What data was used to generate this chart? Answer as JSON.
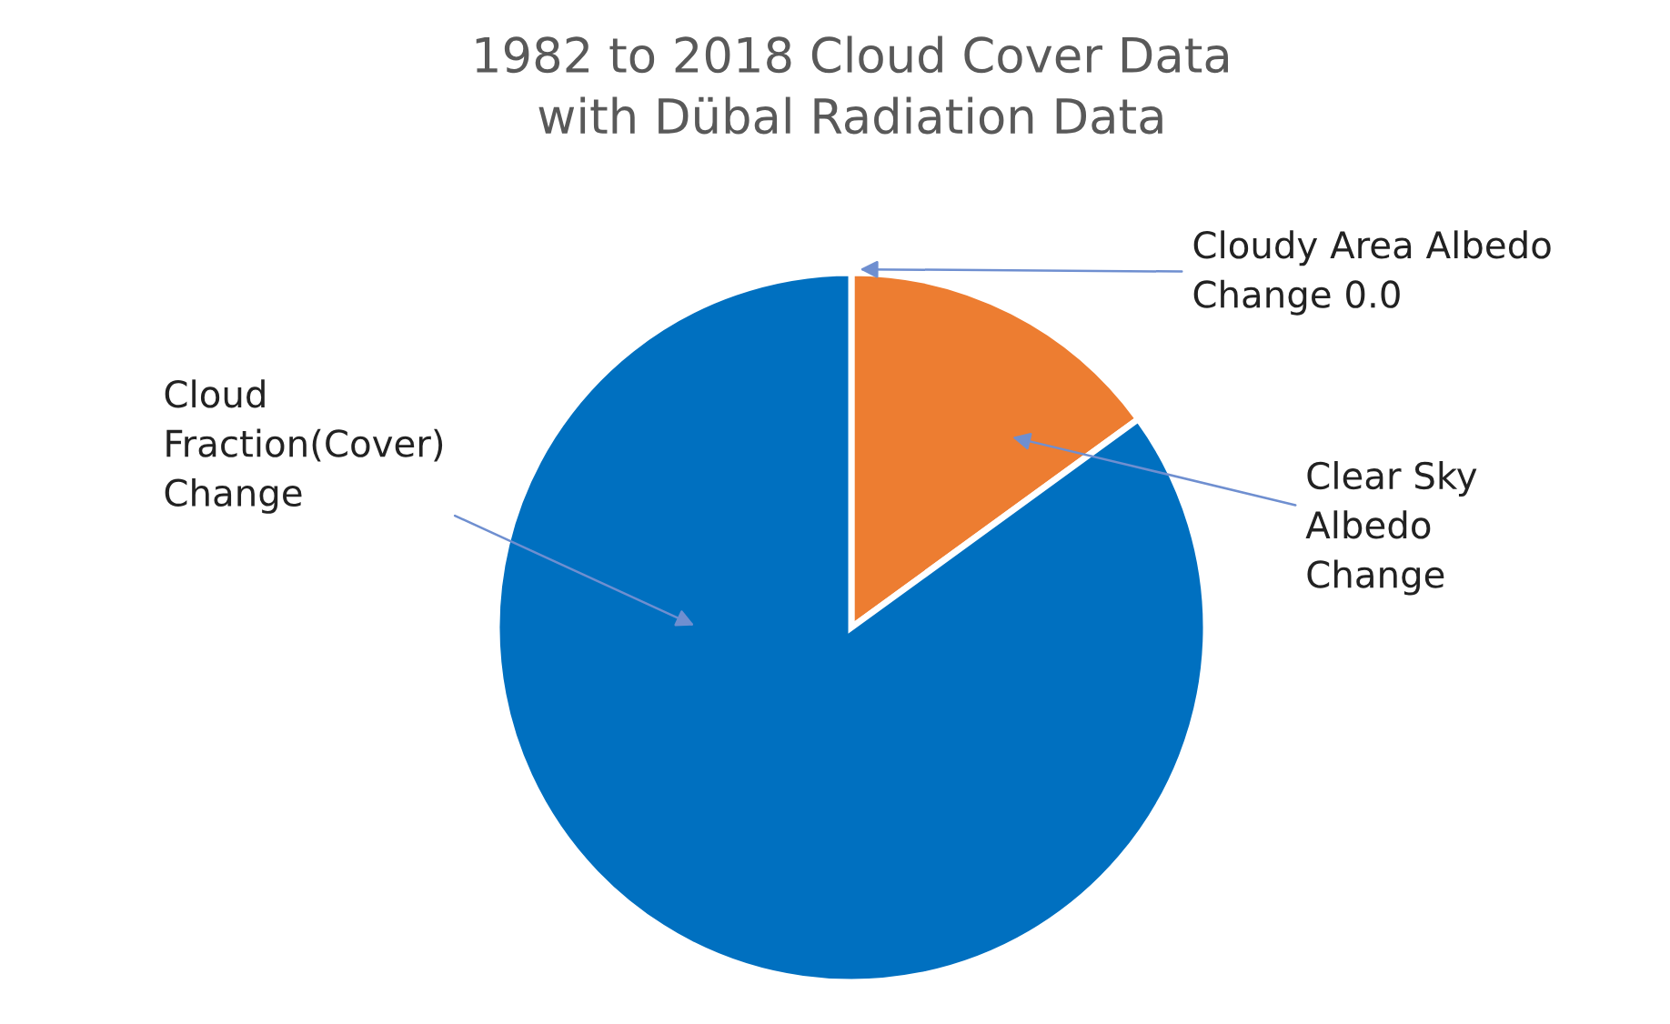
{
  "chart_data": {
    "type": "pie",
    "title": "1982 to 2018 Cloud Cover Data\nwith Dübal Radiation Data",
    "categories": [
      "Cloudy Area Albedo Change",
      "Clear Sky Albedo Change",
      "Cloud Fraction(Cover) Change"
    ],
    "values": [
      0,
      15,
      85
    ],
    "value_labels": [
      "0.0",
      null,
      null
    ],
    "colors": [
      "#a5a5a5",
      "#ed7d31",
      "#0070c0"
    ],
    "legend": false
  }
}
